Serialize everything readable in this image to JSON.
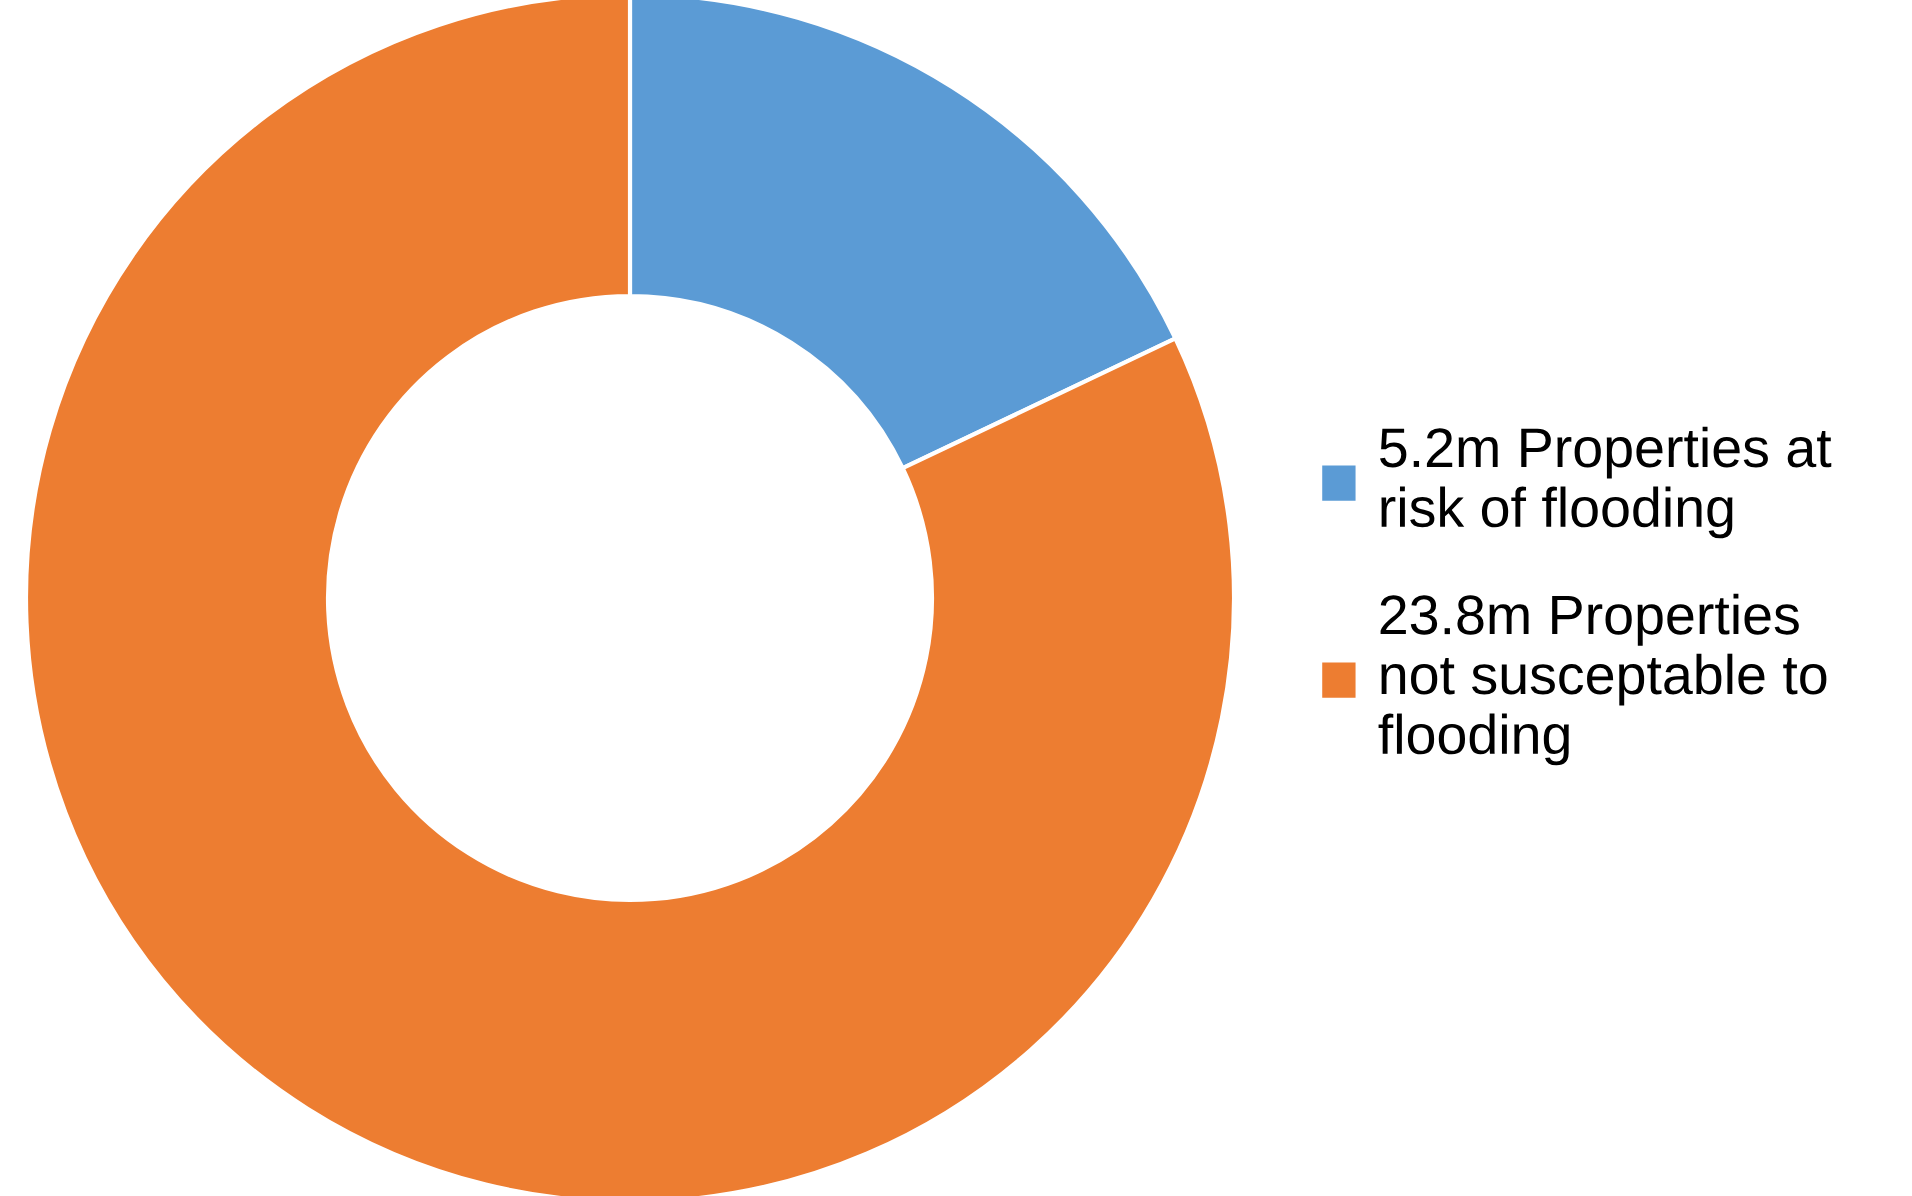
{
  "chart_data": {
    "type": "donut",
    "categories": [
      "5.2m Properties at\nrisk of flooding",
      "23.8m Properties\nnot susceptable to\nflooding"
    ],
    "values": [
      5.2,
      23.8
    ],
    "colors": [
      "#5b9bd5",
      "#ed7d31"
    ],
    "legend": "right"
  }
}
